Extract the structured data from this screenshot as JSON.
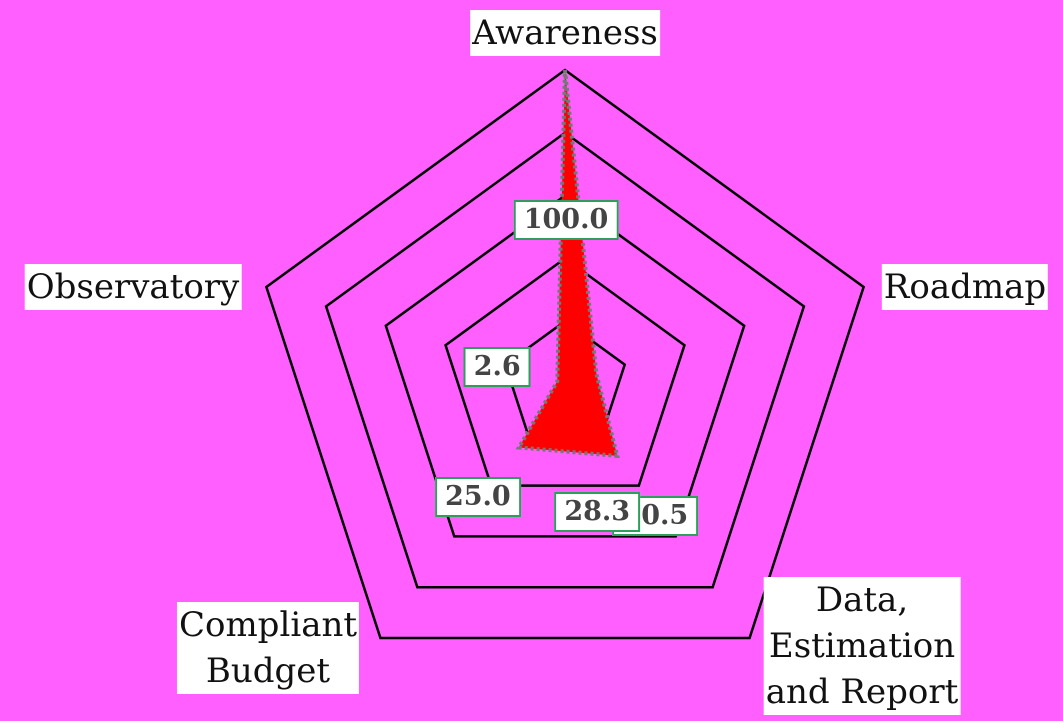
{
  "chart_data": {
    "type": "radar",
    "categories": [
      "Awareness",
      "Roadmap",
      "Data,\nEstimation\nand Report",
      "Compliant\nBudget",
      "Observatory"
    ],
    "values": [
      100,
      10.5,
      28.3,
      25.0,
      2.6
    ],
    "value_labels": [
      "100.0",
      "10.5",
      "28.3",
      "25.0",
      "2.6"
    ],
    "color": "#ff0000",
    "ylim": [
      0,
      100
    ],
    "yticks": [
      20,
      40,
      60,
      80,
      100
    ],
    "grid": true
  }
}
